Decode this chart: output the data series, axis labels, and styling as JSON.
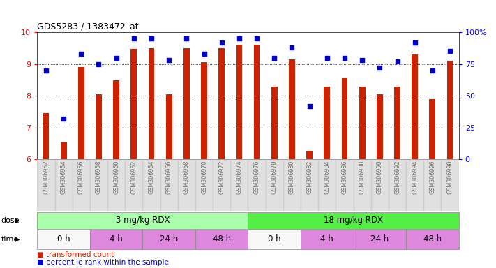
{
  "title": "GDS5283 / 1383472_at",
  "categories": [
    "GSM306952",
    "GSM306954",
    "GSM306956",
    "GSM306958",
    "GSM306960",
    "GSM306962",
    "GSM306964",
    "GSM306966",
    "GSM306968",
    "GSM306970",
    "GSM306972",
    "GSM306974",
    "GSM306976",
    "GSM306978",
    "GSM306980",
    "GSM306982",
    "GSM306984",
    "GSM306986",
    "GSM306988",
    "GSM306990",
    "GSM306992",
    "GSM306994",
    "GSM306996",
    "GSM306998"
  ],
  "bar_values": [
    7.45,
    6.55,
    8.9,
    8.05,
    8.48,
    9.48,
    9.5,
    8.05,
    9.5,
    9.05,
    9.5,
    9.6,
    9.6,
    8.3,
    9.15,
    6.28,
    8.3,
    8.55,
    8.3,
    8.05,
    8.3,
    9.3,
    7.9,
    9.1
  ],
  "percentile_values": [
    70,
    32,
    83,
    75,
    80,
    95,
    95,
    78,
    95,
    83,
    92,
    95,
    95,
    80,
    88,
    42,
    80,
    80,
    78,
    72,
    77,
    92,
    70,
    85
  ],
  "ylim_left": [
    6,
    10
  ],
  "ylim_right": [
    0,
    100
  ],
  "yticks_left": [
    6,
    7,
    8,
    9,
    10
  ],
  "yticks_right": [
    0,
    25,
    50,
    75,
    100
  ],
  "bar_color": "#cc2200",
  "dot_color": "#0000cc",
  "dose_groups": [
    {
      "label": "3 mg/kg RDX",
      "start": 0,
      "end": 12,
      "color": "#aaffaa"
    },
    {
      "label": "18 mg/kg RDX",
      "start": 12,
      "end": 24,
      "color": "#55ee44"
    }
  ],
  "time_groups": [
    {
      "label": "0 h",
      "start": 0,
      "end": 3,
      "color": "#f8f8f8"
    },
    {
      "label": "4 h",
      "start": 3,
      "end": 6,
      "color": "#dd88dd"
    },
    {
      "label": "24 h",
      "start": 6,
      "end": 9,
      "color": "#dd88dd"
    },
    {
      "label": "48 h",
      "start": 9,
      "end": 12,
      "color": "#dd88dd"
    },
    {
      "label": "0 h",
      "start": 12,
      "end": 15,
      "color": "#f8f8f8"
    },
    {
      "label": "4 h",
      "start": 15,
      "end": 18,
      "color": "#dd88dd"
    },
    {
      "label": "24 h",
      "start": 18,
      "end": 21,
      "color": "#dd88dd"
    },
    {
      "label": "48 h",
      "start": 21,
      "end": 24,
      "color": "#dd88dd"
    }
  ],
  "dose_label": "dose",
  "time_label": "time",
  "right_tick_labels": [
    "0",
    "25",
    "50",
    "75",
    "100%"
  ]
}
